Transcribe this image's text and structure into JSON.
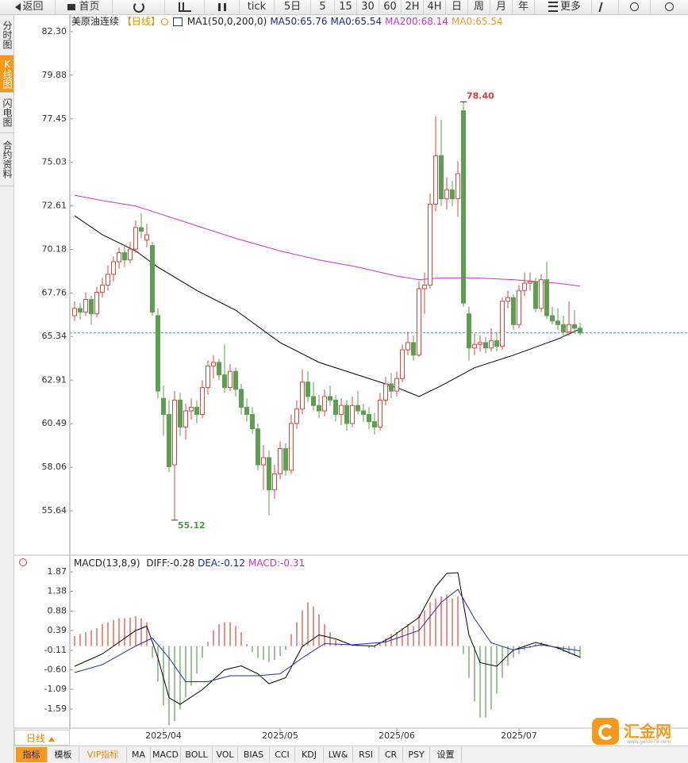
{
  "toolbar": {
    "back": "返回",
    "home": "首页",
    "periods": [
      "tick",
      "5日",
      "5",
      "15",
      "30",
      "60",
      "2H",
      "4H",
      "日",
      "周",
      "月",
      "年"
    ],
    "more": "更多"
  },
  "sidebar": [
    "分时图",
    "K线图",
    "闪电图",
    "合约资料"
  ],
  "period_tab": "日线",
  "indicator_tabs": [
    "指标",
    "模板",
    "VIP指标",
    "MA",
    "MACD",
    "BOLL",
    "VOL",
    "BIAS",
    "CCI",
    "KDJ",
    "LW&",
    "RSI",
    "CR",
    "PSY",
    "设置"
  ],
  "logo": {
    "name": "汇金网",
    "url": "www.gold678.com"
  },
  "chart_data": [
    {
      "type": "candlestick",
      "title": "美原油连续",
      "period": "【日线】",
      "legend": [
        {
          "text": "MA1(50,0,200,0)",
          "color": "#222222"
        },
        {
          "text": "MA50:65.76",
          "color": "#1a2a80"
        },
        {
          "text": "MA0:65.54",
          "color": "#1a2a80"
        },
        {
          "text": "MA200:68.14",
          "color": "#d030d0"
        },
        {
          "text": "MA0:65.54",
          "color": "#f09a30"
        }
      ],
      "up_color": "#e0453c",
      "down_color": "#5e9e52",
      "price_line_color": "#2a9fc0",
      "ylim": [
        53.17,
        83.18
      ],
      "yticks": [
        {
          "value": 82.3,
          "label": "82.30"
        },
        79.88,
        77.45,
        75.03,
        72.61,
        70.18,
        67.76,
        65.34,
        62.91,
        60.49,
        58.06,
        55.64
      ],
      "xticks": [
        {
          "value": 16,
          "label": "2025/04"
        },
        {
          "value": 37,
          "label": "2025/05"
        },
        {
          "value": 58,
          "label": "2025/06"
        },
        {
          "value": 80,
          "label": "2025/07"
        }
      ],
      "candles": [
        [
          66.5,
          67.3,
          66.2,
          66.9
        ],
        [
          66.9,
          67.2,
          66.3,
          66.7
        ],
        [
          66.7,
          67.8,
          66.5,
          67.4
        ],
        [
          67.4,
          67.6,
          66.0,
          66.6
        ],
        [
          66.6,
          68.1,
          66.4,
          67.8
        ],
        [
          67.8,
          68.6,
          67.5,
          68.2
        ],
        [
          68.2,
          69.3,
          67.9,
          68.8
        ],
        [
          68.8,
          69.8,
          68.4,
          69.5
        ],
        [
          69.5,
          70.3,
          69.1,
          70.0
        ],
        [
          70.0,
          70.4,
          69.2,
          69.6
        ],
        [
          69.6,
          70.6,
          69.4,
          70.2
        ],
        [
          70.2,
          71.8,
          70.0,
          71.4
        ],
        [
          71.4,
          72.2,
          70.8,
          71.2
        ],
        [
          70.7,
          71.6,
          70.3,
          71.0
        ],
        [
          70.4,
          70.6,
          66.5,
          66.7
        ],
        [
          66.5,
          66.9,
          61.9,
          62.3
        ],
        [
          61.9,
          62.6,
          59.8,
          61.0
        ],
        [
          61.0,
          61.8,
          57.8,
          58.1
        ],
        [
          58.2,
          62.3,
          55.12,
          61.8
        ],
        [
          61.8,
          62.2,
          59.8,
          60.3
        ],
        [
          60.3,
          61.6,
          59.6,
          61.2
        ],
        [
          61.2,
          61.9,
          60.7,
          61.4
        ],
        [
          61.4,
          61.8,
          60.5,
          61.0
        ],
        [
          61.0,
          62.9,
          60.8,
          62.5
        ],
        [
          62.5,
          64.0,
          62.1,
          63.7
        ],
        [
          63.7,
          64.3,
          63.0,
          63.9
        ],
        [
          63.9,
          64.1,
          62.9,
          63.2
        ],
        [
          63.2,
          64.9,
          62.2,
          62.5
        ],
        [
          62.5,
          63.8,
          62.3,
          63.4
        ],
        [
          63.4,
          63.6,
          62.0,
          62.4
        ],
        [
          62.4,
          62.7,
          61.0,
          61.4
        ],
        [
          61.4,
          61.9,
          60.6,
          61.0
        ],
        [
          61.0,
          61.4,
          59.9,
          60.2
        ],
        [
          60.2,
          60.5,
          57.9,
          58.2
        ],
        [
          58.2,
          59.3,
          56.8,
          58.6
        ],
        [
          58.6,
          59.0,
          55.4,
          56.8
        ],
        [
          56.8,
          58.2,
          56.3,
          57.7
        ],
        [
          57.7,
          59.5,
          57.4,
          59.1
        ],
        [
          59.1,
          59.4,
          57.6,
          57.9
        ],
        [
          57.9,
          61.0,
          57.7,
          60.5
        ],
        [
          60.5,
          61.8,
          60.2,
          61.3
        ],
        [
          61.3,
          63.5,
          61.0,
          62.8
        ],
        [
          62.8,
          63.4,
          61.7,
          62.0
        ],
        [
          62.0,
          62.8,
          61.2,
          61.5
        ],
        [
          61.5,
          62.1,
          60.8,
          61.2
        ],
        [
          61.2,
          62.4,
          60.9,
          62.0
        ],
        [
          62.0,
          62.6,
          61.5,
          61.8
        ],
        [
          61.8,
          62.1,
          60.6,
          61.0
        ],
        [
          61.0,
          61.9,
          60.4,
          61.5
        ],
        [
          61.5,
          61.8,
          60.1,
          60.5
        ],
        [
          60.5,
          62.0,
          60.3,
          61.5
        ],
        [
          61.5,
          62.3,
          61.0,
          61.2
        ],
        [
          61.2,
          61.6,
          60.6,
          61.0
        ],
        [
          61.0,
          61.4,
          60.2,
          60.6
        ],
        [
          60.6,
          61.1,
          59.9,
          60.3
        ],
        [
          60.3,
          62.2,
          60.1,
          61.8
        ],
        [
          61.8,
          63.1,
          61.5,
          62.7
        ],
        [
          62.7,
          63.3,
          61.9,
          62.3
        ],
        [
          62.3,
          63.4,
          62.0,
          63.0
        ],
        [
          63.0,
          64.9,
          62.8,
          64.6
        ],
        [
          64.6,
          65.6,
          64.3,
          65.0
        ],
        [
          65.0,
          65.4,
          64.0,
          64.3
        ],
        [
          64.3,
          68.4,
          64.2,
          68.0
        ],
        [
          68.0,
          68.9,
          66.6,
          68.2
        ],
        [
          68.2,
          73.3,
          68.0,
          72.7
        ],
        [
          72.7,
          77.6,
          72.3,
          75.4
        ],
        [
          75.4,
          77.4,
          72.6,
          73.0
        ],
        [
          73.0,
          74.2,
          72.4,
          73.5
        ],
        [
          73.5,
          74.0,
          72.6,
          73.0
        ],
        [
          73.0,
          75.1,
          72.0,
          74.4
        ],
        [
          77.9,
          78.4,
          67.0,
          67.2
        ],
        [
          66.6,
          67.0,
          64.0,
          64.7
        ],
        [
          64.7,
          65.5,
          64.3,
          64.9
        ],
        [
          64.9,
          65.4,
          64.5,
          65.0
        ],
        [
          65.0,
          65.3,
          64.4,
          64.7
        ],
        [
          64.7,
          65.8,
          64.5,
          65.1
        ],
        [
          65.1,
          65.6,
          64.5,
          64.8
        ],
        [
          64.8,
          67.5,
          64.6,
          67.3
        ],
        [
          67.3,
          67.9,
          66.9,
          67.5
        ],
        [
          67.5,
          67.7,
          65.7,
          66.0
        ],
        [
          66.0,
          68.2,
          65.8,
          67.9
        ],
        [
          67.9,
          68.9,
          67.6,
          68.3
        ],
        [
          68.3,
          68.9,
          67.9,
          68.4
        ],
        [
          68.4,
          68.6,
          66.7,
          66.9
        ],
        [
          66.9,
          68.8,
          66.7,
          68.5
        ],
        [
          68.5,
          69.5,
          66.3,
          66.5
        ],
        [
          66.5,
          67.0,
          66.0,
          66.2
        ],
        [
          66.2,
          66.9,
          65.7,
          66.0
        ],
        [
          66.0,
          66.5,
          65.3,
          65.6
        ],
        [
          65.6,
          67.3,
          65.4,
          66.0
        ],
        [
          66.0,
          66.8,
          65.6,
          65.8
        ],
        [
          65.8,
          66.1,
          65.4,
          65.54
        ]
      ],
      "series": [
        {
          "color": "#000000",
          "x": [
            0,
            5,
            11,
            15,
            22,
            29,
            37,
            44,
            51,
            58,
            62,
            66,
            72,
            79,
            87,
            91
          ],
          "values": [
            72.06,
            71.0,
            70.1,
            69.2,
            67.9,
            66.8,
            65.0,
            63.9,
            63.2,
            62.5,
            62.0,
            62.6,
            63.6,
            64.3,
            65.2,
            65.76
          ]
        },
        {
          "color": "#cc33cc",
          "x": [
            0,
            5,
            11,
            15,
            22,
            29,
            37,
            44,
            51,
            58,
            62,
            66,
            72,
            79,
            87,
            91
          ],
          "values": [
            73.2,
            72.9,
            72.6,
            72.2,
            71.5,
            70.8,
            70.1,
            69.6,
            69.2,
            68.7,
            68.5,
            68.6,
            68.6,
            68.5,
            68.3,
            68.14
          ]
        }
      ],
      "annotations": [
        {
          "index": 70,
          "value": 78.4,
          "label": "78.40",
          "color": "#d0403a"
        },
        {
          "index": 18,
          "value": 55.12,
          "label": "55.12",
          "color": "#4e9a48"
        }
      ]
    },
    {
      "type": "macd",
      "title": "MACD(13,8,9)",
      "legend": [
        {
          "text": "DIFF:-0.28",
          "color": "#222222"
        },
        {
          "text": "DEA:-0.12",
          "color": "#1a2a90"
        },
        {
          "text": "MACD:-0.31",
          "color": "#d030d0"
        }
      ],
      "up_color": "#e0453c",
      "down_color": "#5e9e52",
      "ylim": [
        -2.01,
        1.99
      ],
      "yticks": [
        1.87,
        1.38,
        0.88,
        0.39,
        -0.11,
        {
          "value": -0.6,
          "label": "-0.60"
        },
        -1.09,
        -1.59
      ],
      "values": [
        0.25,
        0.3,
        0.35,
        0.4,
        0.45,
        0.55,
        0.6,
        0.65,
        0.7,
        0.7,
        0.72,
        0.75,
        0.7,
        0.6,
        -0.3,
        -0.9,
        -1.5,
        -2.0,
        -1.9,
        -1.6,
        -1.3,
        -1.0,
        -0.7,
        -0.3,
        0.1,
        0.4,
        0.55,
        0.6,
        0.6,
        0.5,
        0.35,
        0.05,
        -0.15,
        -0.3,
        -0.35,
        -0.4,
        -0.35,
        -0.25,
        -0.1,
        0.3,
        0.6,
        0.9,
        1.1,
        1.0,
        0.8,
        0.55,
        0.35,
        0.15,
        0.05,
        0.0,
        0.02,
        0.02,
        0.0,
        -0.05,
        -0.05,
        0.05,
        0.2,
        0.3,
        0.35,
        0.45,
        0.55,
        0.5,
        0.8,
        0.9,
        1.1,
        1.2,
        1.25,
        1.3,
        1.2,
        1.25,
        -0.2,
        -0.8,
        -1.4,
        -1.8,
        -1.8,
        -1.6,
        -1.2,
        -0.8,
        -0.5,
        -0.3,
        -0.2,
        -0.1,
        -0.05,
        0.05,
        0.1,
        0.05,
        0.0,
        -0.1,
        -0.15,
        -0.2,
        -0.25,
        -0.31
      ],
      "series": [
        {
          "color": "#000000",
          "x": [
            0,
            5,
            11,
            13,
            15,
            17,
            19,
            23,
            27,
            30,
            33,
            35,
            38,
            41,
            44,
            47,
            50,
            54,
            57,
            62,
            65,
            67,
            69,
            71,
            73,
            76,
            79,
            83,
            87,
            91
          ],
          "values": [
            -0.51,
            -0.2,
            0.39,
            0.5,
            -0.3,
            -1.3,
            -1.47,
            -1.1,
            -0.6,
            -0.5,
            -0.7,
            -0.95,
            -0.8,
            -0.01,
            0.28,
            0.18,
            0.02,
            0.0,
            0.22,
            0.72,
            1.5,
            1.83,
            1.85,
            0.28,
            -0.42,
            -0.51,
            -0.1,
            0.09,
            -0.05,
            -0.28
          ]
        },
        {
          "color": "#2030a0",
          "x": [
            0,
            5,
            11,
            14,
            17,
            20,
            24,
            28,
            33,
            37,
            41,
            45,
            50,
            56,
            62,
            66,
            69,
            72,
            75,
            79,
            84,
            88,
            91
          ],
          "values": [
            -0.67,
            -0.47,
            0.0,
            0.2,
            -0.3,
            -0.9,
            -0.9,
            -0.75,
            -0.75,
            -0.7,
            -0.3,
            0.06,
            0.03,
            0.1,
            0.39,
            1.1,
            1.43,
            0.69,
            0.08,
            -0.1,
            0.03,
            -0.06,
            -0.12
          ]
        }
      ]
    }
  ]
}
